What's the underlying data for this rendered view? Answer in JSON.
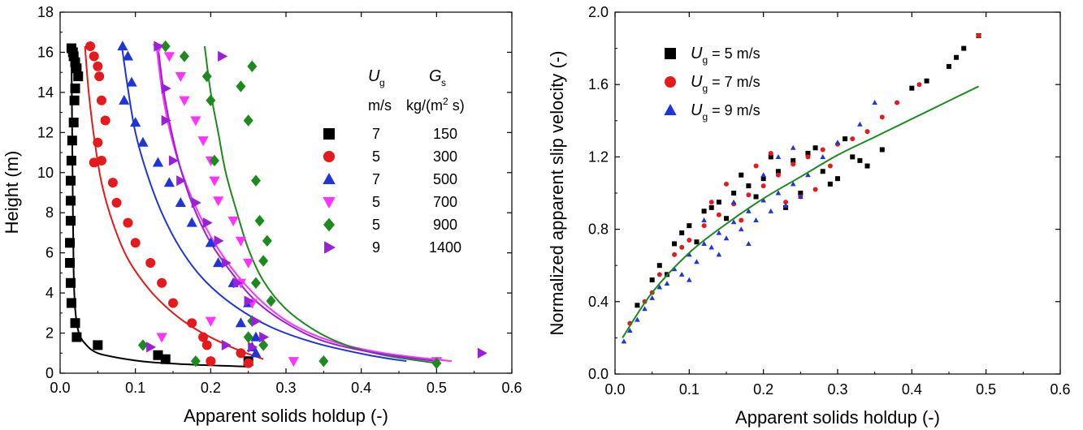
{
  "chart_data": [
    {
      "type": "scatter",
      "xlabel": "Apparent solids holdup (-)",
      "ylabel": "Height (m)",
      "xlim": [
        0,
        0.6
      ],
      "ylim": [
        0,
        18
      ],
      "xticks": [
        "0.0",
        "0.1",
        "0.2",
        "0.3",
        "0.4",
        "0.5",
        "0.6"
      ],
      "yticks": [
        "0",
        "2",
        "4",
        "6",
        "8",
        "10",
        "12",
        "14",
        "16",
        "18"
      ],
      "legend": {
        "placement": "right",
        "header_ug": "U",
        "header_ug_sub": "g",
        "header_ug_unit": "m/s",
        "header_gs": "G",
        "header_gs_sub": "s",
        "header_gs_unit_a": "kg/(m",
        "header_gs_unit_sup": "2",
        "header_gs_unit_b": " s)"
      },
      "series": [
        {
          "ug": "7",
          "gs": "150",
          "color": "#000000",
          "marker": "square",
          "x": [
            0.015,
            0.017,
            0.018,
            0.02,
            0.022,
            0.024,
            0.02,
            0.019,
            0.018,
            0.016,
            0.015,
            0.014,
            0.014,
            0.014,
            0.013,
            0.013,
            0.014,
            0.015,
            0.02,
            0.022,
            0.05,
            0.13,
            0.14,
            0.25
          ],
          "y": [
            16.2,
            16.0,
            15.8,
            15.5,
            15.2,
            14.8,
            14.2,
            13.6,
            12.5,
            11.6,
            10.6,
            9.6,
            8.6,
            7.6,
            6.5,
            5.5,
            4.5,
            3.5,
            2.5,
            1.8,
            1.4,
            0.9,
            0.7,
            0.6
          ],
          "fit_x": [
            0.015,
            0.016,
            0.017,
            0.018,
            0.02,
            0.025,
            0.035,
            0.05,
            0.08,
            0.12,
            0.18,
            0.25
          ],
          "fit_y": [
            16.3,
            12,
            8,
            5,
            3.2,
            2.0,
            1.4,
            1.0,
            0.75,
            0.55,
            0.42,
            0.33
          ]
        },
        {
          "ug": "5",
          "gs": "300",
          "color": "#e41a1c",
          "marker": "circle",
          "x": [
            0.04,
            0.045,
            0.05,
            0.052,
            0.055,
            0.06,
            0.05,
            0.055,
            0.045,
            0.07,
            0.075,
            0.09,
            0.1,
            0.12,
            0.135,
            0.15,
            0.175,
            0.19,
            0.195,
            0.24,
            0.2,
            0.25
          ],
          "y": [
            16.3,
            15.8,
            15.3,
            14.8,
            13.6,
            12.6,
            11.5,
            10.6,
            10.5,
            9.5,
            8.5,
            7.5,
            6.5,
            5.5,
            4.5,
            3.5,
            2.5,
            1.8,
            1.4,
            1.0,
            0.6,
            0.5
          ],
          "fit_x": [
            0.033,
            0.038,
            0.045,
            0.055,
            0.07,
            0.09,
            0.12,
            0.15,
            0.18,
            0.21,
            0.24,
            0.27
          ],
          "fit_y": [
            16.3,
            14.0,
            11.8,
            9.5,
            7.5,
            5.7,
            4.1,
            3.0,
            2.2,
            1.6,
            1.1,
            0.7
          ]
        },
        {
          "ug": "7",
          "gs": "500",
          "color": "#1f35d8",
          "marker": "triangle-up",
          "x": [
            0.083,
            0.09,
            0.095,
            0.085,
            0.1,
            0.11,
            0.13,
            0.145,
            0.16,
            0.175,
            0.2,
            0.21,
            0.23,
            0.25,
            0.24,
            0.26,
            0.255,
            0.26
          ],
          "y": [
            16.3,
            15.8,
            14.5,
            13.6,
            12.5,
            11.5,
            10.5,
            9.5,
            8.5,
            7.5,
            6.5,
            5.5,
            4.5,
            3.5,
            2.5,
            1.8,
            1.3,
            1.0
          ],
          "fit_x": [
            0.082,
            0.09,
            0.1,
            0.115,
            0.135,
            0.16,
            0.19,
            0.23,
            0.28,
            0.34,
            0.41,
            0.46
          ],
          "fit_y": [
            16.3,
            14.2,
            12.0,
            10.0,
            8.0,
            6.2,
            4.7,
            3.4,
            2.3,
            1.5,
            0.9,
            0.6
          ]
        },
        {
          "ug": "5",
          "gs": "700",
          "color": "#ff33ff",
          "marker": "triangle-down",
          "x": [
            0.13,
            0.145,
            0.16,
            0.165,
            0.18,
            0.19,
            0.2,
            0.205,
            0.21,
            0.23,
            0.24,
            0.25,
            0.24,
            0.255,
            0.2,
            0.135,
            0.31,
            0.5
          ],
          "y": [
            16.2,
            15.8,
            14.8,
            13.6,
            12.6,
            11.6,
            10.6,
            9.6,
            8.6,
            7.6,
            6.6,
            5.5,
            4.5,
            3.5,
            2.6,
            1.8,
            0.6,
            0.6
          ],
          "fit_x": [
            0.128,
            0.135,
            0.145,
            0.16,
            0.18,
            0.205,
            0.235,
            0.27,
            0.31,
            0.36,
            0.43,
            0.52
          ],
          "fit_y": [
            16.3,
            14.2,
            12.2,
            10.2,
            8.3,
            6.5,
            4.9,
            3.5,
            2.4,
            1.6,
            1.0,
            0.6
          ]
        },
        {
          "ug": "5",
          "gs": "900",
          "color": "#1d8a1d",
          "marker": "diamond",
          "x": [
            0.14,
            0.165,
            0.195,
            0.255,
            0.24,
            0.25,
            0.2,
            0.205,
            0.26,
            0.265,
            0.275,
            0.27,
            0.26,
            0.28,
            0.255,
            0.25,
            0.27,
            0.11,
            0.18,
            0.35,
            0.5
          ],
          "y": [
            16.3,
            15.8,
            14.8,
            15.3,
            14.3,
            12.6,
            13.6,
            10.6,
            9.6,
            7.6,
            6.6,
            5.6,
            4.5,
            3.6,
            2.6,
            1.8,
            1.4,
            1.4,
            0.6,
            0.6,
            0.5
          ],
          "fit_x": [
            0.192,
            0.2,
            0.21,
            0.22,
            0.235,
            0.25,
            0.27,
            0.3,
            0.34,
            0.38,
            0.43,
            0.5
          ],
          "fit_y": [
            16.3,
            14.0,
            12.0,
            10.0,
            8.0,
            6.2,
            4.6,
            3.2,
            2.1,
            1.4,
            0.9,
            0.5
          ]
        },
        {
          "ug": "9",
          "gs": "1400",
          "color": "#9a1fd8",
          "marker": "triangle-right",
          "x": [
            0.13,
            0.215,
            0.14,
            0.14,
            0.15,
            0.16,
            0.18,
            0.195,
            0.21,
            0.22,
            0.235,
            0.25,
            0.26,
            0.27,
            0.255,
            0.22,
            0.12,
            0.56
          ],
          "y": [
            16.3,
            15.8,
            14.2,
            12.6,
            10.6,
            9.6,
            8.5,
            7.5,
            6.6,
            5.5,
            4.5,
            3.6,
            2.6,
            1.8,
            1.3,
            1.4,
            1.3,
            1.0
          ],
          "fit_x": [
            0.13,
            0.137,
            0.147,
            0.16,
            0.177,
            0.2,
            0.23,
            0.26,
            0.3,
            0.35,
            0.42,
            0.5
          ],
          "fit_y": [
            16.3,
            14.2,
            12.2,
            10.2,
            8.3,
            6.5,
            4.9,
            3.6,
            2.5,
            1.6,
            1.0,
            0.6
          ]
        }
      ]
    },
    {
      "type": "scatter",
      "xlabel": "Apparent solids holdup (-)",
      "ylabel": "Normalized apparent slip velocity (-)",
      "xlim": [
        0,
        0.6
      ],
      "ylim": [
        0,
        2.0
      ],
      "xticks": [
        "0.0",
        "0.1",
        "0.2",
        "0.3",
        "0.4",
        "0.5",
        "0.6"
      ],
      "yticks": [
        "0.0",
        "0.4",
        "0.8",
        "1.2",
        "1.6",
        "2.0"
      ],
      "legend": {
        "placement": "top-left"
      },
      "fit": {
        "color": "#1d8a1d",
        "x": [
          0.01,
          0.05,
          0.1,
          0.15,
          0.2,
          0.25,
          0.3,
          0.35,
          0.4,
          0.45,
          0.49
        ],
        "y": [
          0.2,
          0.45,
          0.67,
          0.83,
          0.97,
          1.09,
          1.21,
          1.31,
          1.41,
          1.51,
          1.59
        ]
      },
      "series": [
        {
          "name_main": "U",
          "name_sub": "g",
          "name_rest": " = 5 m/s",
          "color": "#000000",
          "marker": "square",
          "x": [
            0.03,
            0.05,
            0.08,
            0.1,
            0.12,
            0.14,
            0.16,
            0.18,
            0.2,
            0.22,
            0.24,
            0.26,
            0.28,
            0.3,
            0.32,
            0.34,
            0.36,
            0.4,
            0.42,
            0.45,
            0.46,
            0.47,
            0.49,
            0.06,
            0.09,
            0.13,
            0.17,
            0.21,
            0.25,
            0.29,
            0.31,
            0.33,
            0.23,
            0.19,
            0.15,
            0.11,
            0.07,
            0.27
          ],
          "y": [
            0.38,
            0.52,
            0.72,
            0.82,
            0.9,
            0.95,
            1.0,
            1.04,
            1.08,
            1.12,
            1.18,
            1.22,
            1.12,
            1.08,
            1.2,
            1.15,
            1.24,
            1.58,
            1.62,
            1.7,
            1.75,
            1.8,
            1.87,
            0.6,
            0.78,
            0.92,
            1.1,
            1.2,
            1.0,
            1.05,
            1.3,
            1.18,
            0.92,
            0.98,
            0.86,
            0.73,
            0.55,
            1.25
          ]
        },
        {
          "name_main": "U",
          "name_sub": "g",
          "name_rest": " = 7 m/s",
          "color": "#e41a1c",
          "marker": "circle",
          "x": [
            0.02,
            0.04,
            0.06,
            0.08,
            0.1,
            0.12,
            0.14,
            0.16,
            0.18,
            0.2,
            0.22,
            0.24,
            0.26,
            0.28,
            0.3,
            0.32,
            0.34,
            0.36,
            0.38,
            0.41,
            0.49,
            0.05,
            0.09,
            0.13,
            0.17,
            0.21,
            0.25,
            0.29,
            0.15,
            0.19,
            0.23,
            0.27
          ],
          "y": [
            0.28,
            0.4,
            0.55,
            0.66,
            0.74,
            0.82,
            0.88,
            0.94,
            0.99,
            1.04,
            1.1,
            1.16,
            1.2,
            1.24,
            1.27,
            1.3,
            1.34,
            1.42,
            1.5,
            1.6,
            1.87,
            0.45,
            0.7,
            0.95,
            0.85,
            1.22,
            0.98,
            1.15,
            1.05,
            1.15,
            0.95,
            1.02
          ]
        },
        {
          "name_main": "U",
          "name_sub": "g",
          "name_rest": " = 9 m/s",
          "color": "#1f35d8",
          "marker": "triangle-up",
          "x": [
            0.012,
            0.02,
            0.03,
            0.04,
            0.05,
            0.06,
            0.08,
            0.1,
            0.12,
            0.14,
            0.16,
            0.18,
            0.2,
            0.22,
            0.24,
            0.26,
            0.28,
            0.3,
            0.33,
            0.35,
            0.07,
            0.09,
            0.11,
            0.13,
            0.15,
            0.17,
            0.19,
            0.21,
            0.23,
            0.25,
            0.12,
            0.16,
            0.2,
            0.24,
            0.18,
            0.14,
            0.1,
            0.22
          ],
          "y": [
            0.18,
            0.24,
            0.3,
            0.36,
            0.42,
            0.48,
            0.58,
            0.66,
            0.72,
            0.78,
            0.84,
            0.9,
            0.96,
            1.0,
            1.05,
            1.1,
            1.2,
            1.28,
            1.38,
            1.5,
            0.5,
            0.55,
            0.62,
            0.7,
            0.75,
            0.8,
            0.85,
            0.9,
            0.93,
            0.98,
            0.85,
            0.95,
            1.1,
            1.25,
            0.72,
            0.66,
            0.52,
            1.2
          ]
        }
      ]
    }
  ]
}
